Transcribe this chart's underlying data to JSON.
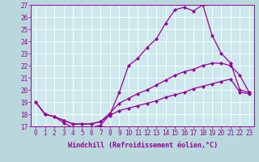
{
  "xlabel": "Windchill (Refroidissement éolien,°C)",
  "x": [
    0,
    1,
    2,
    3,
    4,
    5,
    6,
    7,
    8,
    9,
    10,
    11,
    12,
    13,
    14,
    15,
    16,
    17,
    18,
    19,
    20,
    21,
    22,
    23
  ],
  "line_upper": [
    19.0,
    18.0,
    17.8,
    17.3,
    16.9,
    16.9,
    16.9,
    17.1,
    18.0,
    19.8,
    22.0,
    22.6,
    23.5,
    24.2,
    25.5,
    26.6,
    26.8,
    26.5,
    27.0,
    24.5,
    23.0,
    22.2,
    20.0,
    19.8
  ],
  "line_mid": [
    19.0,
    18.0,
    17.8,
    17.5,
    17.2,
    17.2,
    17.2,
    17.4,
    18.1,
    18.9,
    19.3,
    19.7,
    20.0,
    20.4,
    20.8,
    21.2,
    21.5,
    21.7,
    22.0,
    22.2,
    22.2,
    22.0,
    21.2,
    19.8
  ],
  "line_low": [
    19.0,
    18.0,
    17.8,
    17.5,
    17.2,
    17.2,
    17.2,
    17.4,
    17.9,
    18.3,
    18.5,
    18.7,
    18.9,
    19.1,
    19.4,
    19.6,
    19.8,
    20.1,
    20.3,
    20.5,
    20.7,
    20.9,
    19.8,
    19.7
  ],
  "color": "#990099",
  "bg_outer": "#b8d8dc",
  "bg_inner": "#cce8ec",
  "grid_color": "#aacccc",
  "xlim": [
    -0.5,
    23.5
  ],
  "ylim": [
    17,
    27
  ],
  "yticks": [
    17,
    18,
    19,
    20,
    21,
    22,
    23,
    24,
    25,
    26,
    27
  ],
  "xticks": [
    0,
    1,
    2,
    3,
    4,
    5,
    6,
    7,
    8,
    9,
    10,
    11,
    12,
    13,
    14,
    15,
    16,
    17,
    18,
    19,
    20,
    21,
    22,
    23
  ],
  "tick_fontsize": 5.5,
  "xlabel_fontsize": 6.0
}
